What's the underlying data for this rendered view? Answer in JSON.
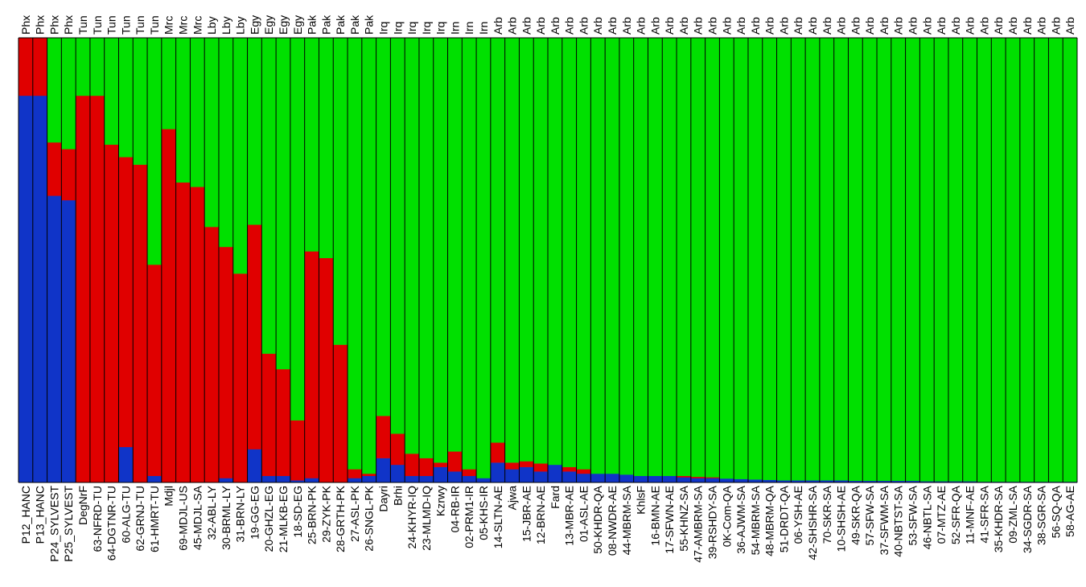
{
  "chart_data": {
    "type": "bar",
    "stacked": true,
    "normalized": true,
    "ylim": [
      0,
      1
    ],
    "grid": false,
    "colors": [
      "#1034c8",
      "#e00000",
      "#00e000"
    ],
    "groups": [
      "Phx",
      "Phx",
      "Phx",
      "Phx",
      "Tun",
      "Tun",
      "Tun",
      "Tun",
      "Tun",
      "Tun",
      "Mrc",
      "Mrc",
      "Mrc",
      "Lby",
      "Lby",
      "Lby",
      "Egy",
      "Egy",
      "Egy",
      "Egy",
      "Pak",
      "Pak",
      "Pak",
      "Pak",
      "Pak",
      "Irq",
      "Irq",
      "Irq",
      "Irq",
      "Irq",
      "Irn",
      "Irn",
      "Irn",
      "Arb",
      "Arb",
      "Arb",
      "Arb",
      "Arb",
      "Arb",
      "Arb",
      "Arb",
      "Arb",
      "Arb",
      "Arb",
      "Arb",
      "Arb",
      "Arb",
      "Arb",
      "Arb",
      "Arb",
      "Arb",
      "Arb",
      "Arb",
      "Arb",
      "Arb",
      "Arb",
      "Arb",
      "Arb",
      "Arb",
      "Arb",
      "Arb",
      "Arb",
      "Arb",
      "Arb",
      "Arb",
      "Arb",
      "Arb",
      "Arb",
      "Arb",
      "Arb",
      "Arb",
      "Arb",
      "Arb",
      "Arb",
      "Arb",
      "Arb",
      "Arb",
      "Arb",
      "Arb",
      "Arb",
      "Arb"
    ],
    "categories": [
      "P12_HANC",
      "P13_HANC",
      "P24_SYLVEST",
      "P25_SYLVEST",
      "DegNrF",
      "63-NFRD-TU",
      "64-DGTNR-TU",
      "60-ALG-TU",
      "62-GRNJ-TU",
      "61-HMRT-TU",
      "Mdjl",
      "69-MDJL-US",
      "45-MDJL-SA",
      "32-ABL-LY",
      "30-BRML-LY",
      "31-BRN-LY",
      "19-GG-EG",
      "20-GHZL-EG",
      "21-MLKB-EG",
      "18-SD-EG",
      "25-BRN-PK",
      "29-ZYK-PK",
      "28-GRTH-PK",
      "27-ASL-PK",
      "26-SNGL-PK",
      "Dayri",
      "Brhi",
      "24-KHYR-IQ",
      "23-MLMD-IQ",
      "Kzrwy",
      "04-RB-IR",
      "02-PRM1-IR",
      "05-KHS-IR",
      "14-SLTN-AE",
      "Ajwa",
      "15-JBR-AE",
      "12-BRN-AE",
      "Fard",
      "13-MBR-AE",
      "01-ASL-AE",
      "50-KHDR-QA",
      "08-NWDR-AE",
      "44-MBRM-SA",
      "KhlsF",
      "16-BMN-AE",
      "17-SFWN-AE",
      "55-KHNZ-SA",
      "47-AMBRM-SA",
      "39-RSHDY-SA",
      "0K-Com-QA",
      "36-AJWM-SA",
      "54-MBRM-SA",
      "48-MBRM-QA",
      "51-DRDT-QA",
      "06-YSH-AE",
      "42-SHSHR-SA",
      "70-SKR-SA",
      "10-SHSH-AE",
      "49-SKR-QA",
      "57-SFW-SA",
      "37-SFWM-SA",
      "40-NBTST-SA",
      "53-SFW-SA",
      "46-NBTL-SA",
      "07-MTZ-AE",
      "52-SFR-QA",
      "11-MNF-AE",
      "41-SFR-SA",
      "35-KHDR-SA",
      "09-ZML-SA",
      "34-SGDR-SA",
      "38-SGR-SA",
      "56-SQ-QA",
      "58-AG-AE"
    ],
    "series": [
      {
        "values": [
          0.87,
          0.87,
          0.645,
          0.635,
          0,
          0,
          0,
          0.08,
          0,
          0.015,
          0,
          0,
          0,
          0,
          0.01,
          0,
          0.075,
          0.015,
          0.015,
          0.005,
          0.01,
          0,
          0,
          0.01,
          0.015,
          0.055,
          0.04,
          0.015,
          0.015,
          0.035,
          0.025,
          0.015,
          0.01,
          0.045,
          0.03,
          0.035,
          0.025,
          0.04,
          0.025,
          0.02,
          0.02,
          0.02,
          0.018,
          0.015,
          0.015,
          0.015,
          0.012,
          0.01,
          0.01,
          0.009,
          0.008,
          0.007,
          0.006,
          0.005,
          0.005,
          0.005,
          0.005,
          0.005,
          0.004,
          0.004,
          0.004,
          0.004,
          0.004,
          0.003,
          0.003,
          0.003,
          0.003,
          0.002,
          0.002,
          0.002,
          0.002,
          0.002,
          0.002,
          0.002
        ]
      },
      {
        "values": [
          0.13,
          0.13,
          0.12,
          0.115,
          0.87,
          0.87,
          0.76,
          0.652,
          0.715,
          0.475,
          0.795,
          0.675,
          0.665,
          0.575,
          0.52,
          0.47,
          0.505,
          0.275,
          0.24,
          0.135,
          0.51,
          0.505,
          0.31,
          0.02,
          0.005,
          0.095,
          0.07,
          0.05,
          0.04,
          0.01,
          0.045,
          0.015,
          0,
          0.045,
          0.015,
          0.013,
          0.018,
          0,
          0.01,
          0.01,
          0,
          0,
          0,
          0,
          0,
          0,
          0.003,
          0.003,
          0.002,
          0,
          0,
          0,
          0,
          0,
          0,
          0,
          0,
          0,
          0,
          0,
          0,
          0,
          0,
          0,
          0,
          0,
          0,
          0,
          0,
          0,
          0,
          0,
          0,
          0
        ]
      },
      {
        "values": [
          0,
          0,
          0.235,
          0.25,
          0.13,
          0.13,
          0.24,
          0.268,
          0.285,
          0.51,
          0.205,
          0.325,
          0.335,
          0.425,
          0.47,
          0.53,
          0.42,
          0.71,
          0.745,
          0.86,
          0.48,
          0.495,
          0.69,
          0.97,
          0.98,
          0.85,
          0.89,
          0.935,
          0.945,
          0.955,
          0.93,
          0.97,
          0.99,
          0.91,
          0.955,
          0.952,
          0.957,
          0.96,
          0.965,
          0.97,
          0.98,
          0.98,
          0.982,
          0.985,
          0.985,
          0.985,
          0.985,
          0.987,
          0.988,
          0.991,
          0.992,
          0.993,
          0.994,
          0.995,
          0.995,
          0.995,
          0.995,
          0.995,
          0.996,
          0.996,
          0.996,
          0.996,
          0.996,
          0.997,
          0.997,
          0.997,
          0.997,
          0.998,
          0.998,
          0.998,
          0.998,
          0.998,
          0.998,
          0.998
        ]
      }
    ]
  }
}
